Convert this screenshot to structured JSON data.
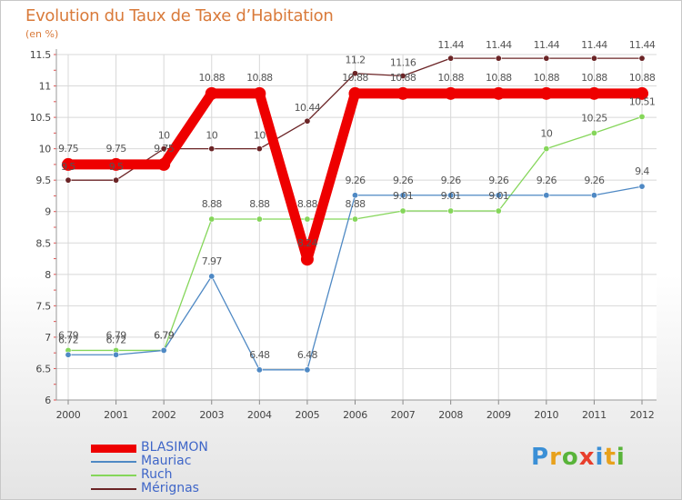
{
  "header": {
    "title": "Evolution du Taux de Taxe d’Habitation",
    "unit": "(en %)"
  },
  "logo": {
    "text": "Proxiti",
    "colors": [
      "#3a8fd6",
      "#e8a11c",
      "#59b43a",
      "#e83e2c",
      "#3a8fd6",
      "#e8a11c",
      "#59b43a"
    ]
  },
  "chart_data": {
    "type": "line",
    "x": [
      "2000",
      "2001",
      "2002",
      "2003",
      "2004",
      "2005",
      "2006",
      "2007",
      "2008",
      "2009",
      "2010",
      "2011",
      "2012"
    ],
    "ylim": [
      6,
      11.5
    ],
    "yticks": [
      "6",
      "6.5",
      "7",
      "7.5",
      "8",
      "8.5",
      "9",
      "9.5",
      "10",
      "10.5",
      "11",
      "11.5"
    ],
    "grid": true,
    "legend_position": "bottom-left",
    "series": [
      {
        "name": "BLASIMON",
        "color": "#ee0000",
        "values": [
          9.75,
          9.75,
          9.75,
          10.88,
          10.88,
          8.24,
          10.88,
          10.88,
          10.88,
          10.88,
          10.88,
          10.88,
          10.88
        ],
        "labels": [
          "9.75",
          "9.75",
          "9.75",
          "10.88",
          "10.88",
          "8.24",
          "10.88",
          "10.88",
          "10.88",
          "10.88",
          "10.88",
          "10.88",
          "10.88"
        ]
      },
      {
        "name": "Mauriac",
        "color": "#4f89c4",
        "values": [
          6.72,
          6.72,
          6.79,
          7.97,
          6.48,
          6.48,
          9.26,
          9.26,
          9.26,
          9.26,
          9.26,
          9.26,
          9.4
        ],
        "labels": [
          "6.72",
          "6.72",
          "6.79",
          "7.97",
          "6.48",
          "6.48",
          "9.26",
          "9.26",
          "9.26",
          "9.26",
          "9.26",
          "9.26",
          "9.4"
        ]
      },
      {
        "name": "Ruch",
        "color": "#85d65a",
        "values": [
          6.79,
          6.79,
          6.79,
          8.88,
          8.88,
          8.88,
          8.88,
          9.01,
          9.01,
          9.01,
          10,
          10.25,
          10.51
        ],
        "labels": [
          "6.79",
          "6.79",
          "6.79",
          "8.88",
          "8.88",
          "8.88",
          "8.88",
          "9.01",
          "9.01",
          "9.01",
          "10",
          "10.25",
          "10.51"
        ]
      },
      {
        "name": "Mérignas",
        "color": "#6b2426",
        "values": [
          9.5,
          9.5,
          10,
          10,
          10,
          10.44,
          11.2,
          11.16,
          11.44,
          11.44,
          11.44,
          11.44,
          11.44
        ],
        "labels": [
          "9.5",
          "9.5",
          "10",
          "10",
          "10",
          "10.44",
          "11.2",
          "11.16",
          "11.44",
          "11.44",
          "11.44",
          "11.44",
          "11.44"
        ]
      }
    ]
  }
}
